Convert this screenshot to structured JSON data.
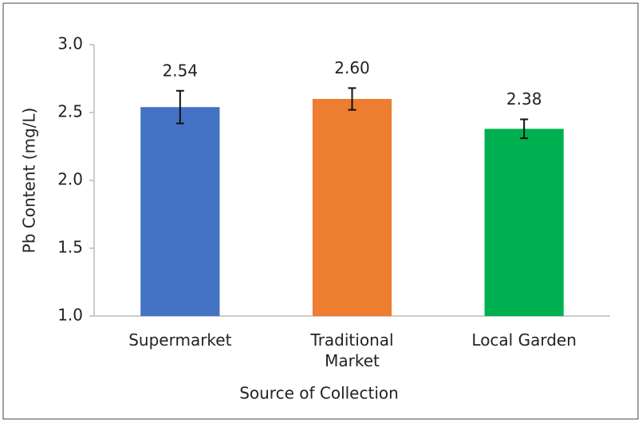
{
  "chart_data": {
    "type": "bar",
    "categories": [
      "Supermarket",
      "Traditional Market",
      "Local Garden"
    ],
    "values": [
      2.54,
      2.6,
      2.38
    ],
    "value_labels": [
      "2.54",
      "2.60",
      "2.38"
    ],
    "errors": [
      0.12,
      0.08,
      0.07
    ],
    "colors": [
      "#4472c4",
      "#ed7d31",
      "#00b050"
    ],
    "x_label": "Source of Collection",
    "y_label": "Pb Content (mg/L)",
    "ylim": [
      1.0,
      3.0
    ],
    "yticks": [
      {
        "value": 1.0,
        "label": "1.0"
      },
      {
        "value": 1.5,
        "label": "1.5"
      },
      {
        "value": 2.0,
        "label": "2.0"
      },
      {
        "value": 2.5,
        "label": "2.5"
      },
      {
        "value": 3.0,
        "label": "3.0"
      }
    ],
    "grid": false
  }
}
